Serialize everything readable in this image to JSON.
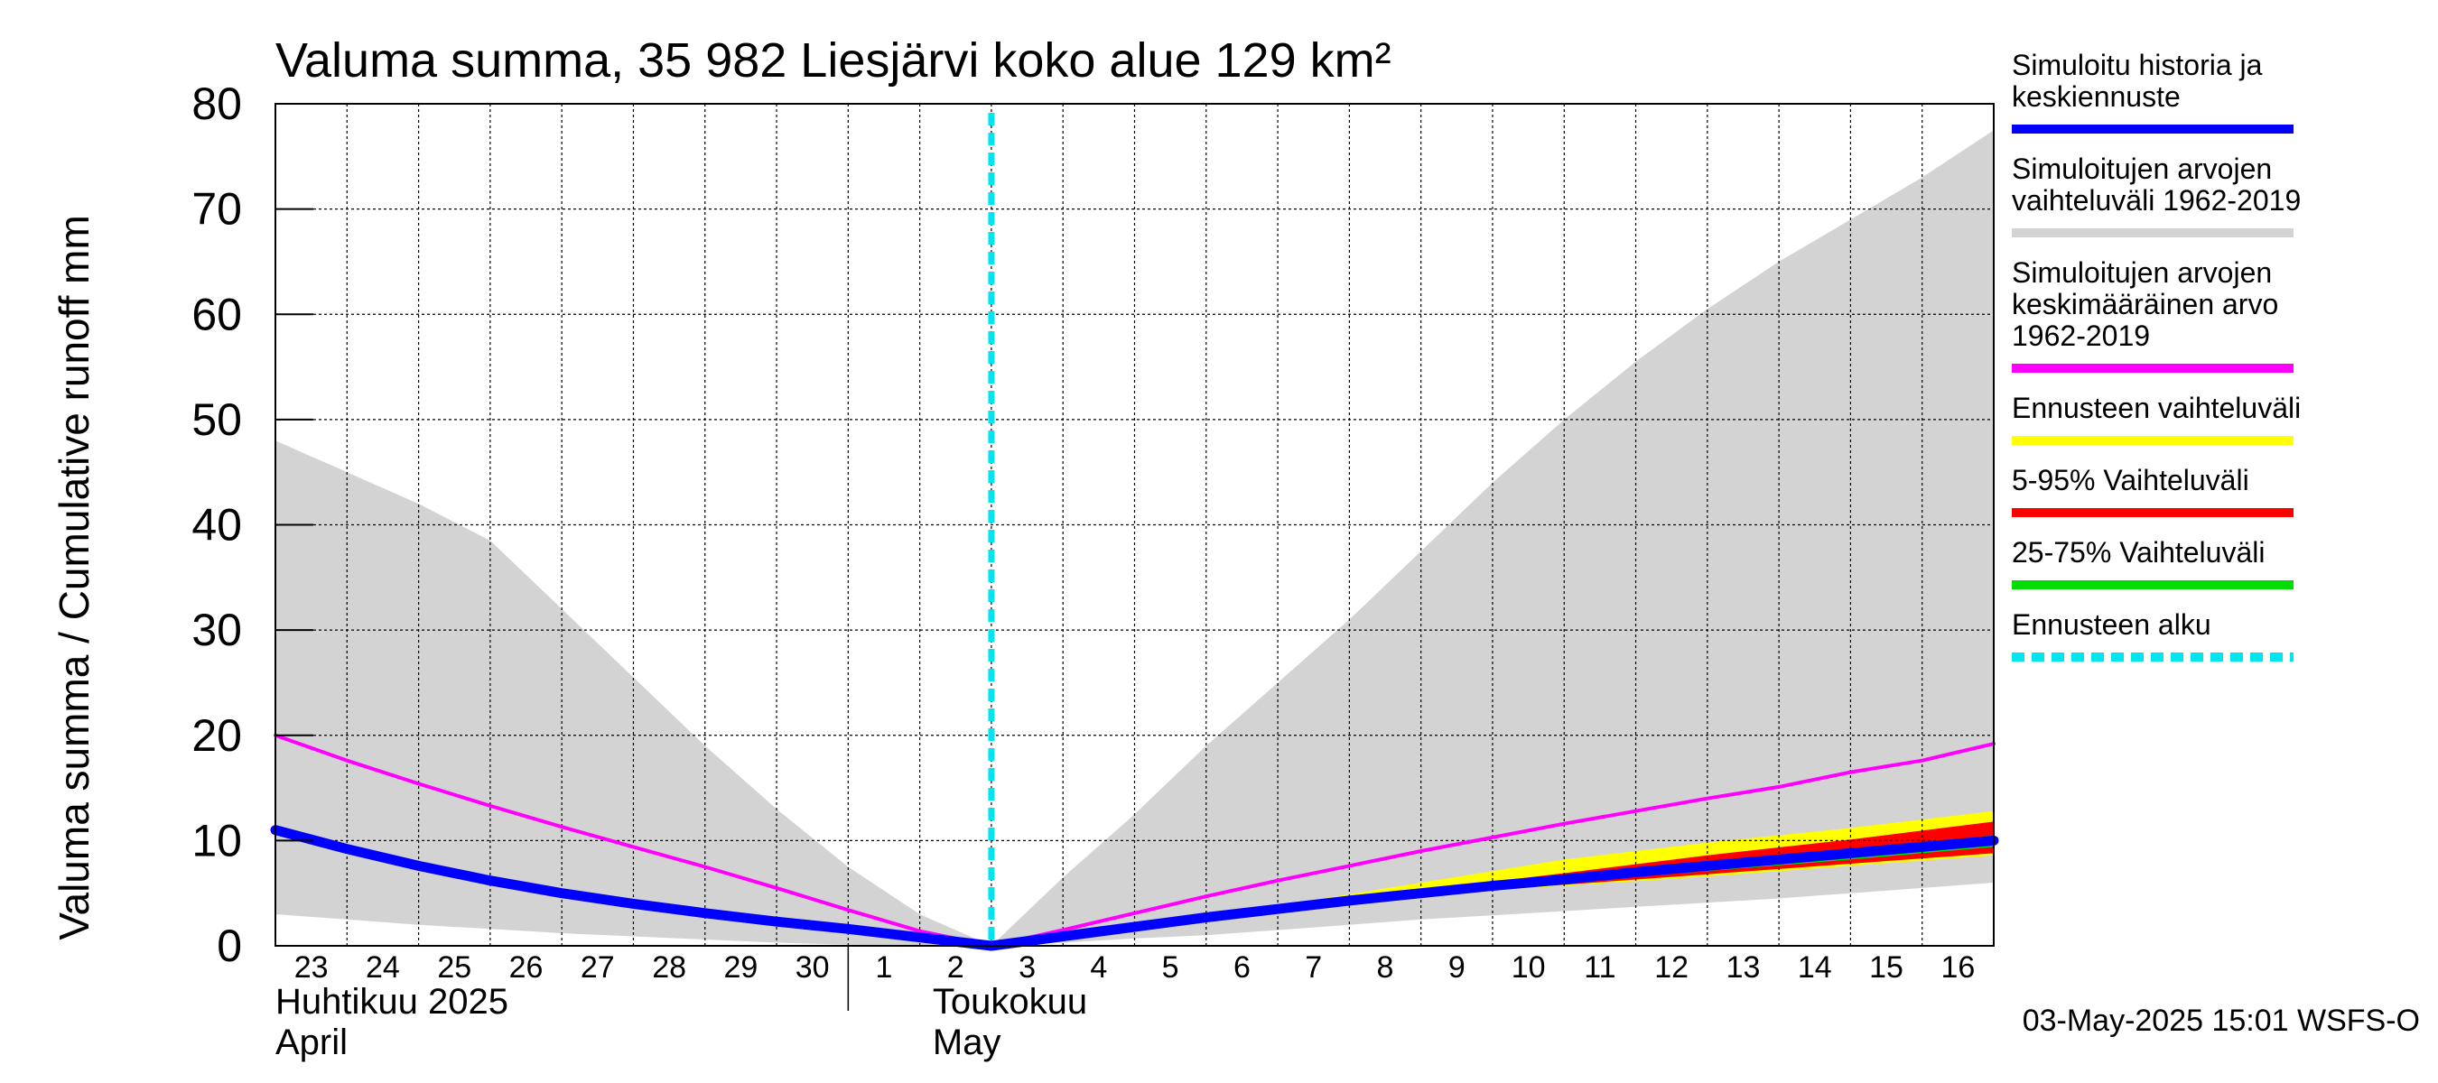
{
  "chart_data": {
    "type": "area",
    "title": "Valuma summa, 35 982 Liesjärvi koko alue 129 km²",
    "ylabel": "Valuma summa / Cumulative runoff     mm",
    "ylim": [
      0,
      80
    ],
    "yticks": [
      0,
      10,
      20,
      30,
      40,
      50,
      60,
      70,
      80
    ],
    "x_day_range": [
      0,
      24
    ],
    "day_labels": [
      {
        "day": 0,
        "label": "23"
      },
      {
        "day": 1,
        "label": "24"
      },
      {
        "day": 2,
        "label": "25"
      },
      {
        "day": 3,
        "label": "26"
      },
      {
        "day": 4,
        "label": "27"
      },
      {
        "day": 5,
        "label": "28"
      },
      {
        "day": 6,
        "label": "29"
      },
      {
        "day": 7,
        "label": "30"
      },
      {
        "day": 8,
        "label": "1"
      },
      {
        "day": 9,
        "label": "2"
      },
      {
        "day": 10,
        "label": "3"
      },
      {
        "day": 11,
        "label": "4"
      },
      {
        "day": 12,
        "label": "5"
      },
      {
        "day": 13,
        "label": "6"
      },
      {
        "day": 14,
        "label": "7"
      },
      {
        "day": 15,
        "label": "8"
      },
      {
        "day": 16,
        "label": "9"
      },
      {
        "day": 17,
        "label": "10"
      },
      {
        "day": 18,
        "label": "11"
      },
      {
        "day": 19,
        "label": "12"
      },
      {
        "day": 20,
        "label": "13"
      },
      {
        "day": 21,
        "label": "14"
      },
      {
        "day": 22,
        "label": "15"
      },
      {
        "day": 23,
        "label": "16"
      }
    ],
    "month_labels": [
      {
        "line1": "Huhtikuu  2025",
        "line2": "April"
      },
      {
        "line1": "Toukokuu",
        "line2": "May"
      }
    ],
    "month_boundary_day": 8,
    "forecast_start_day": 10,
    "series": [
      {
        "name": "Simuloitujen arvojen vaihteluväli 1962-2019",
        "kind": "band",
        "color": "#d3d3d3",
        "x": [
          0,
          1,
          2,
          3,
          4,
          5,
          6,
          7,
          8,
          9,
          10,
          11,
          12,
          13,
          14,
          15,
          16,
          17,
          18,
          19,
          20,
          21,
          22,
          23,
          24
        ],
        "upper": [
          48,
          45,
          42,
          38.5,
          32,
          25.5,
          19,
          13,
          7.5,
          3,
          0,
          6.5,
          12.5,
          19,
          25,
          31,
          37.5,
          44,
          50,
          55.5,
          60.5,
          65,
          69,
          73,
          77.5
        ],
        "lower": [
          3,
          2.5,
          2,
          1.6,
          1.2,
          0.9,
          0.6,
          0.3,
          0.1,
          0,
          0,
          0.3,
          0.7,
          1,
          1.5,
          2,
          2.5,
          2.9,
          3.3,
          3.7,
          4.1,
          4.5,
          5,
          5.5,
          6
        ]
      },
      {
        "name": "Ennusteen vaihteluväli",
        "kind": "band",
        "color": "#ffff00",
        "x": [
          14,
          16,
          18,
          20,
          22,
          24
        ],
        "upper": [
          3.8,
          6,
          8.2,
          9.8,
          11.2,
          12.8
        ],
        "lower": [
          3.6,
          4.9,
          5.7,
          6.6,
          7.6,
          8.6
        ]
      },
      {
        "name": "5-95% Vaihteluväli",
        "kind": "band",
        "color": "#ff0000",
        "x": [
          14,
          16,
          18,
          20,
          22,
          24
        ],
        "upper": [
          3.7,
          5.3,
          6.9,
          8.6,
          10.1,
          11.8
        ],
        "lower": [
          3.6,
          4.9,
          5.8,
          6.8,
          7.8,
          8.8
        ]
      },
      {
        "name": "25-75% Vaihteluväli",
        "kind": "band",
        "color": "#00dd00",
        "x": [
          14,
          16,
          18,
          20,
          22,
          24
        ],
        "upper": [
          3.65,
          5.1,
          6.4,
          7.8,
          9.1,
          10.5
        ],
        "lower": [
          3.6,
          4.9,
          6.0,
          7.1,
          8.2,
          9.4
        ]
      },
      {
        "name": "Simuloitujen arvojen keskimääräinen arvo 1962-2019",
        "kind": "line",
        "color": "#ff00ff",
        "x": [
          0,
          1,
          2,
          3,
          4,
          5,
          6,
          7,
          8,
          9,
          10,
          11,
          12,
          13,
          14,
          15,
          16,
          17,
          18,
          19,
          20,
          21,
          22,
          23,
          24
        ],
        "values": [
          20,
          17.6,
          15.4,
          13.3,
          11.3,
          9.4,
          7.5,
          5.5,
          3.4,
          1.4,
          0,
          1.5,
          3.1,
          4.7,
          6.2,
          7.6,
          9,
          10.3,
          11.6,
          12.8,
          14,
          15.1,
          16.5,
          17.6,
          19.2
        ]
      },
      {
        "name": "Simuloitu historia ja keskiennuste",
        "kind": "line",
        "color": "#0000ff",
        "x": [
          0,
          1,
          2,
          3,
          4,
          5,
          6,
          7,
          8,
          9,
          10,
          11,
          12,
          13,
          14,
          15,
          16,
          17,
          18,
          19,
          20,
          21,
          22,
          23,
          24
        ],
        "values": [
          11,
          9.2,
          7.6,
          6.2,
          5,
          4,
          3.1,
          2.3,
          1.6,
          0.8,
          0,
          0.9,
          1.8,
          2.7,
          3.5,
          4.3,
          5,
          5.7,
          6.3,
          7,
          7.6,
          8.2,
          8.8,
          9.4,
          10
        ]
      }
    ],
    "legend": {
      "placement": "right",
      "items": [
        {
          "label": "Simuloitu historia ja keskiennuste",
          "lines": [
            "Simuloitu historia ja",
            "keskiennuste"
          ],
          "color": "#0000ff",
          "style": "solid"
        },
        {
          "label": "Simuloitujen arvojen vaihteluväli 1962-2019",
          "lines": [
            "Simuloitujen arvojen",
            "vaihteluväli 1962-2019"
          ],
          "color": "#d3d3d3",
          "style": "solid"
        },
        {
          "label": "Simuloitujen arvojen keskimääräinen arvo 1962-2019",
          "lines": [
            "Simuloitujen arvojen",
            "keskimääräinen arvo",
            "   1962-2019"
          ],
          "color": "#ff00ff",
          "style": "solid"
        },
        {
          "label": "Ennusteen vaihteluväli",
          "lines": [
            "Ennusteen vaihteluväli"
          ],
          "color": "#ffff00",
          "style": "solid"
        },
        {
          "label": "5-95% Vaihteluväli",
          "lines": [
            "5-95% Vaihteluväli"
          ],
          "color": "#ff0000",
          "style": "solid"
        },
        {
          "label": "25-75% Vaihteluväli",
          "lines": [
            "25-75% Vaihteluväli"
          ],
          "color": "#00dd00",
          "style": "solid"
        },
        {
          "label": "Ennusteen alku",
          "lines": [
            "Ennusteen alku"
          ],
          "color": "#00e5ee",
          "style": "dashed"
        }
      ]
    },
    "footer": "03-May-2025 15:01 WSFS-O",
    "grid": true
  }
}
